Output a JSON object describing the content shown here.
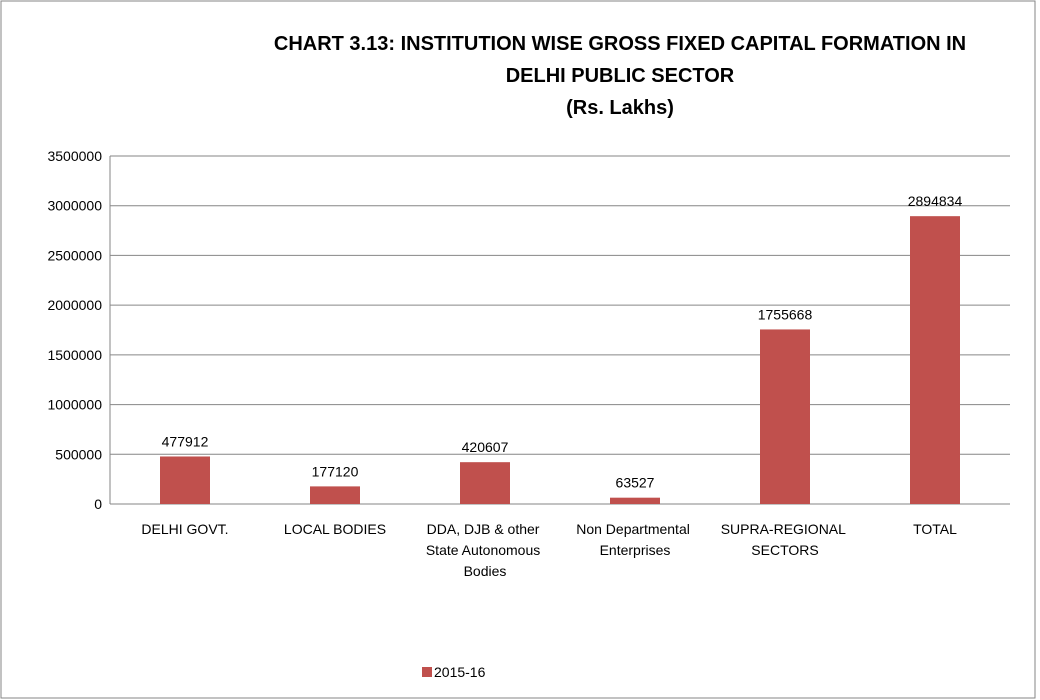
{
  "chart_data": {
    "type": "bar",
    "title": [
      "CHART 3.13: INSTITUTION WISE GROSS FIXED CAPITAL FORMATION IN",
      "DELHI PUBLIC SECTOR"
    ],
    "subtitle": "(Rs. Lakhs)",
    "categories": [
      "DELHI GOVT.",
      "LOCAL BODIES",
      "DDA, DJB & other State Autonomous Bodies",
      "Non Departmental Enterprises",
      "SUPRA-REGIONAL SECTORS",
      "TOTAL"
    ],
    "series": [
      {
        "name": "2015-16",
        "color": "#c0504d",
        "values": [
          477912,
          177120,
          420607,
          63527,
          1755668,
          2894834
        ]
      }
    ],
    "ylim": [
      0,
      3500000
    ],
    "yticks": [
      0,
      500000,
      1000000,
      1500000,
      2000000,
      2500000,
      3000000,
      3500000
    ],
    "grid": true,
    "legend": "bottom"
  }
}
